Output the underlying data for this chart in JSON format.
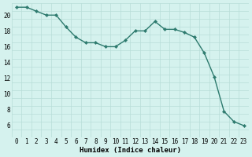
{
  "x": [
    0,
    1,
    2,
    3,
    4,
    5,
    6,
    7,
    8,
    9,
    10,
    11,
    12,
    13,
    14,
    15,
    16,
    17,
    18,
    19,
    20,
    21,
    22,
    23
  ],
  "y": [
    21,
    21,
    20.5,
    20,
    20,
    18.5,
    17.2,
    16.5,
    16.5,
    16.0,
    16.0,
    16.8,
    18.0,
    18.0,
    19.2,
    18.2,
    18.2,
    17.8,
    17.2,
    15.2,
    12.2,
    7.8,
    6.5,
    6.0
  ],
  "line_color": "#2d7a6e",
  "marker": "D",
  "marker_size": 2.2,
  "bg_color": "#d5f2ee",
  "grid_color": "#b8ddd8",
  "xlabel": "Humidex (Indice chaleur)",
  "xlim": [
    -0.5,
    23.5
  ],
  "ylim": [
    4.5,
    21.5
  ],
  "yticks": [
    6,
    8,
    10,
    12,
    14,
    16,
    18,
    20
  ],
  "xticks": [
    0,
    1,
    2,
    3,
    4,
    5,
    6,
    7,
    8,
    9,
    10,
    11,
    12,
    13,
    14,
    15,
    16,
    17,
    18,
    19,
    20,
    21,
    22,
    23
  ],
  "tick_fontsize": 5.5,
  "xlabel_fontsize": 6.5,
  "line_width": 1.0
}
